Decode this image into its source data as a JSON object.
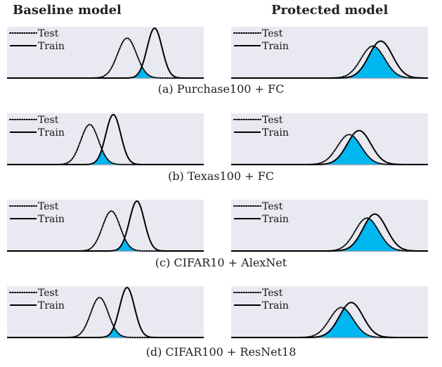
{
  "headers": {
    "left": "Baseline model",
    "right": "Protected model"
  },
  "colors": {
    "panel_bg": "#e9e9f1",
    "overlap_fill": "#00b7f0",
    "curve": "#000000"
  },
  "chart_data": [
    {
      "type": "area",
      "row": 0,
      "column": "baseline",
      "caption": "(a) Purchase100 + FC",
      "legend": [
        "Test",
        "Train"
      ],
      "series": [
        {
          "name": "Test",
          "style": "dotted",
          "mean": 0.61,
          "sd": 0.048,
          "peak": 0.8
        },
        {
          "name": "Train",
          "style": "solid",
          "mean": 0.75,
          "sd": 0.038,
          "peak": 1.0
        }
      ]
    },
    {
      "type": "area",
      "row": 0,
      "column": "protected",
      "caption": "(a) Purchase100 + FC",
      "legend": [
        "Test",
        "Train"
      ],
      "series": [
        {
          "name": "Test",
          "style": "dotted",
          "mean": 0.72,
          "sd": 0.06,
          "peak": 0.64
        },
        {
          "name": "Train",
          "style": "solid",
          "mean": 0.76,
          "sd": 0.06,
          "peak": 0.74
        }
      ]
    },
    {
      "type": "area",
      "row": 1,
      "column": "baseline",
      "caption": "(b) Texas100 + FC",
      "legend": [
        "Test",
        "Train"
      ],
      "series": [
        {
          "name": "Test",
          "style": "dotted",
          "mean": 0.42,
          "sd": 0.045,
          "peak": 0.8
        },
        {
          "name": "Train",
          "style": "solid",
          "mean": 0.54,
          "sd": 0.038,
          "peak": 1.0
        }
      ]
    },
    {
      "type": "area",
      "row": 1,
      "column": "protected",
      "caption": "(b) Texas100 + FC",
      "legend": [
        "Test",
        "Train"
      ],
      "series": [
        {
          "name": "Test",
          "style": "dotted",
          "mean": 0.6,
          "sd": 0.06,
          "peak": 0.6
        },
        {
          "name": "Train",
          "style": "solid",
          "mean": 0.65,
          "sd": 0.06,
          "peak": 0.68
        }
      ]
    },
    {
      "type": "area",
      "row": 2,
      "column": "baseline",
      "caption": "(c) CIFAR10 + AlexNet",
      "legend": [
        "Test",
        "Train"
      ],
      "series": [
        {
          "name": "Test",
          "style": "dotted",
          "mean": 0.53,
          "sd": 0.045,
          "peak": 0.8
        },
        {
          "name": "Train",
          "style": "solid",
          "mean": 0.66,
          "sd": 0.038,
          "peak": 1.0
        }
      ]
    },
    {
      "type": "area",
      "row": 2,
      "column": "protected",
      "caption": "(c) CIFAR10 + AlexNet",
      "legend": [
        "Test",
        "Train"
      ],
      "series": [
        {
          "name": "Test",
          "style": "dotted",
          "mean": 0.69,
          "sd": 0.06,
          "peak": 0.66
        },
        {
          "name": "Train",
          "style": "solid",
          "mean": 0.73,
          "sd": 0.06,
          "peak": 0.74
        }
      ]
    },
    {
      "type": "area",
      "row": 3,
      "column": "baseline",
      "caption": "(d) CIFAR100 + ResNet18",
      "legend": [
        "Test",
        "Train"
      ],
      "series": [
        {
          "name": "Test",
          "style": "dotted",
          "mean": 0.47,
          "sd": 0.045,
          "peak": 0.8
        },
        {
          "name": "Train",
          "style": "solid",
          "mean": 0.61,
          "sd": 0.038,
          "peak": 1.0
        }
      ]
    },
    {
      "type": "area",
      "row": 3,
      "column": "protected",
      "caption": "(d) CIFAR100 + ResNet18",
      "legend": [
        "Test",
        "Train"
      ],
      "series": [
        {
          "name": "Test",
          "style": "dotted",
          "mean": 0.56,
          "sd": 0.06,
          "peak": 0.6
        },
        {
          "name": "Train",
          "style": "solid",
          "mean": 0.61,
          "sd": 0.06,
          "peak": 0.7
        }
      ]
    }
  ],
  "captions": [
    "(a) Purchase100 + FC",
    "(b) Texas100 + FC",
    "(c) CIFAR10 + AlexNet",
    "(d) CIFAR100 + ResNet18"
  ]
}
